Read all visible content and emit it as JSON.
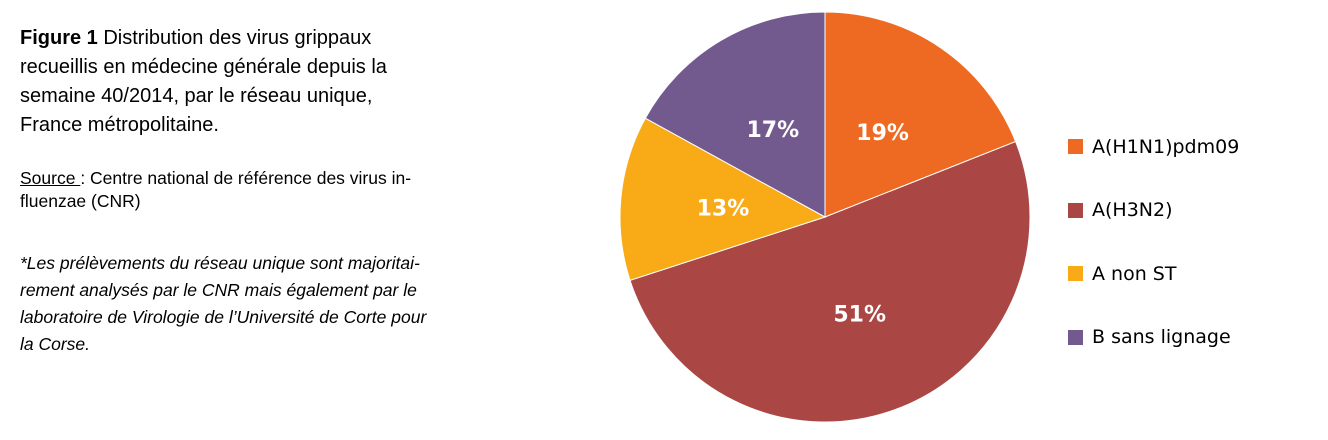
{
  "caption": {
    "figure_label": "Figure 1",
    "lines": [
      " Distribution des virus grippaux",
      "recueillis en médecine générale depuis la",
      "semaine 40/2014, par le réseau unique,",
      "France métropolitaine."
    ]
  },
  "source": {
    "label": "Source ",
    "text": ": Centre national de référence des virus in-",
    "line2": "fluenzae (CNR)"
  },
  "note": {
    "lines": [
      "*Les prélèvements du réseau unique sont majoritai-",
      "rement analysés par le CNR mais également par le",
      "laboratoire de Virologie de l’Université de Corte pour",
      "la Corse."
    ]
  },
  "chart_data": {
    "type": "pie",
    "title": "Figure 1 Distribution des virus grippaux recueillis en médecine générale depuis la semaine 40/2014, par le réseau unique, France métropolitaine.",
    "categories": [
      "A(H1N1)pdm09",
      "A(H3N2)",
      "A non ST",
      "B sans lignage"
    ],
    "values": [
      19,
      51,
      13,
      17
    ],
    "labels": [
      "19%",
      "51%",
      "13%",
      "17%"
    ],
    "colors": [
      "#EE6A22",
      "#AA4643",
      "#F8AB16",
      "#735A8E"
    ],
    "start": "top, clockwise",
    "legend_position": "right"
  }
}
